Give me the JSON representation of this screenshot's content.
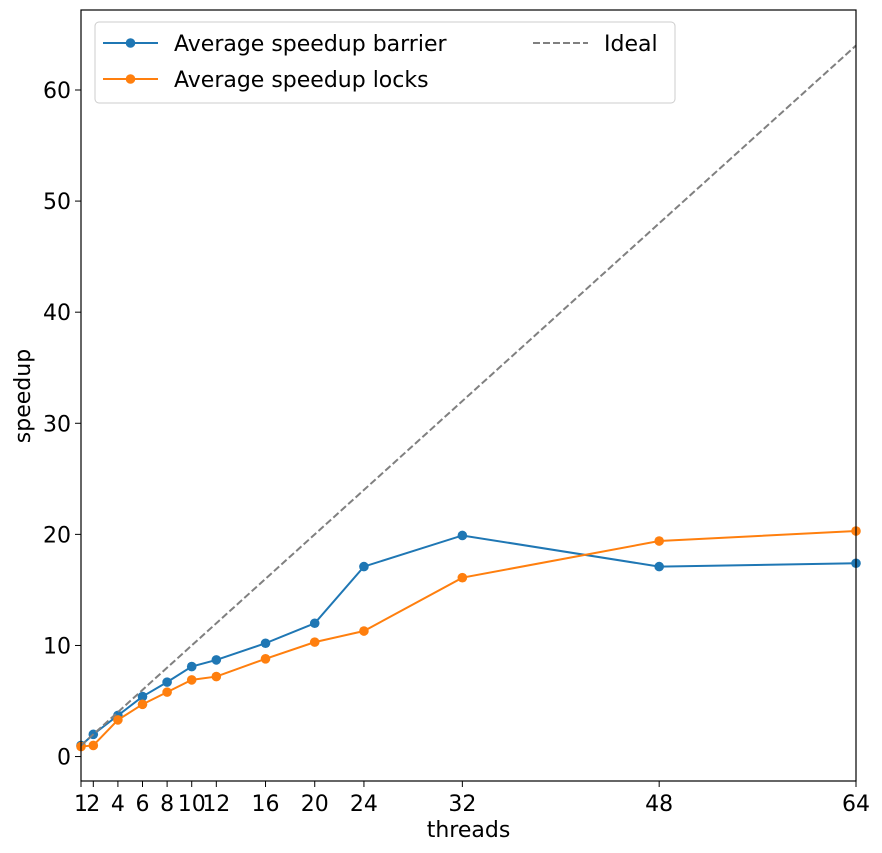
{
  "chart_data": {
    "type": "line",
    "xlabel": "threads",
    "ylabel": "speedup",
    "xlim": [
      1,
      64
    ],
    "ylim": [
      -2.2,
      67.2
    ],
    "x_ticks": [
      1,
      2,
      4,
      6,
      8,
      10,
      12,
      16,
      20,
      24,
      32,
      48,
      64
    ],
    "y_ticks": [
      0,
      10,
      20,
      30,
      40,
      50,
      60
    ],
    "grid": false,
    "legend_position": "top-left",
    "legend_ncol": 2,
    "series": [
      {
        "name": "Average speedup barrier",
        "color": "#1f77b4",
        "style": "solid",
        "marker": "circle",
        "x": [
          1,
          2,
          4,
          6,
          8,
          10,
          12,
          16,
          20,
          24,
          32,
          48,
          64
        ],
        "y": [
          1.0,
          2.0,
          3.7,
          5.4,
          6.7,
          8.1,
          8.7,
          10.2,
          12.0,
          17.1,
          19.9,
          17.1,
          17.4
        ]
      },
      {
        "name": "Average speedup locks",
        "color": "#ff7f0e",
        "style": "solid",
        "marker": "circle",
        "x": [
          1,
          2,
          4,
          6,
          8,
          10,
          12,
          16,
          20,
          24,
          32,
          48,
          64
        ],
        "y": [
          0.9,
          1.0,
          3.3,
          4.7,
          5.8,
          6.9,
          7.2,
          8.8,
          10.3,
          11.3,
          16.1,
          19.4,
          20.3
        ]
      },
      {
        "name": "Ideal",
        "color": "#808080",
        "style": "dashed",
        "marker": "none",
        "x": [
          1,
          64
        ],
        "y": [
          1,
          64
        ]
      }
    ]
  }
}
